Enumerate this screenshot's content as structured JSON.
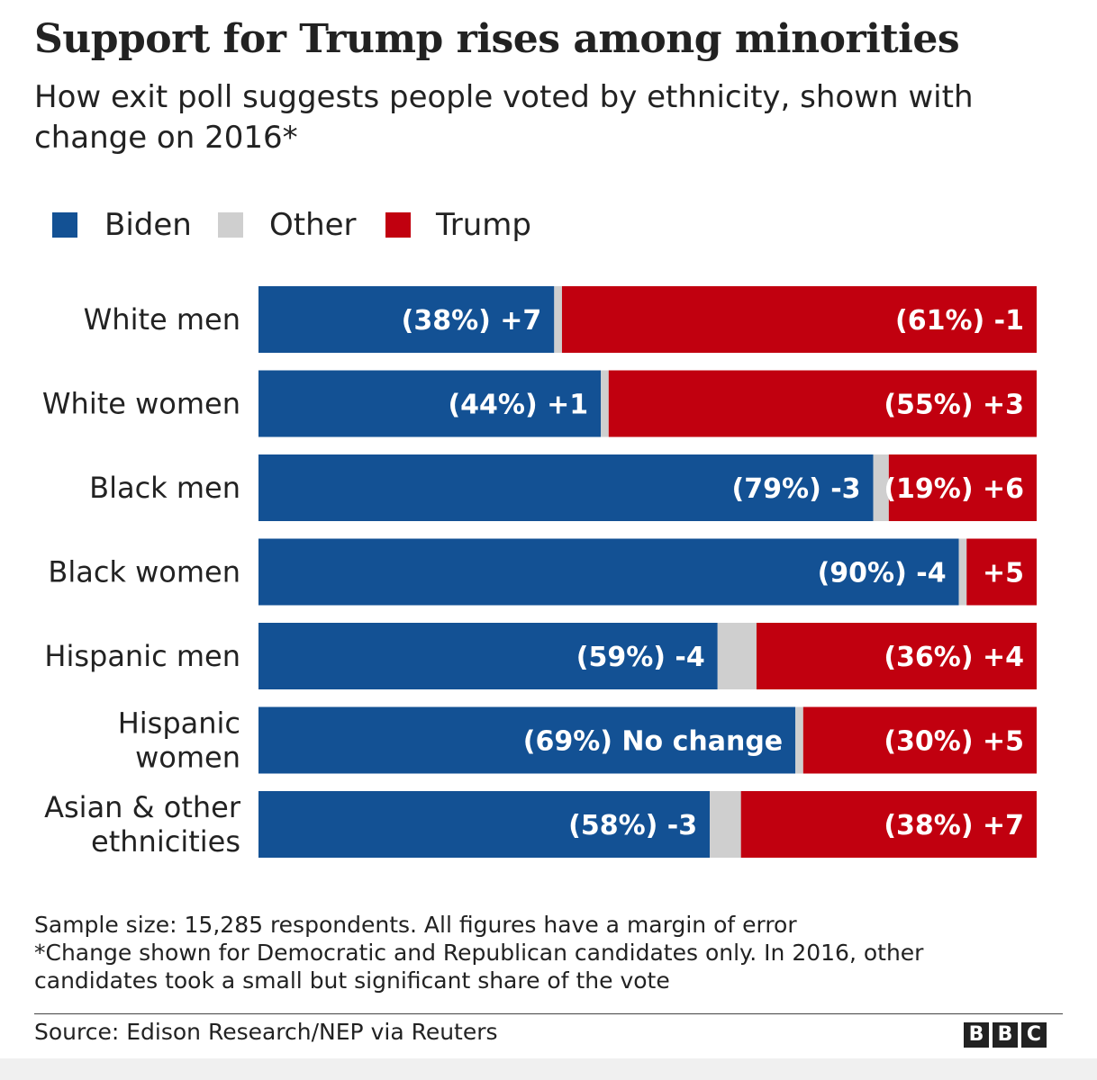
{
  "title": "Support for Trump rises among minorities",
  "subtitle": "How exit poll suggests people voted by ethnicity, shown with change on 2016*",
  "legend": [
    {
      "label": "Biden",
      "color": "#135194"
    },
    {
      "label": "Other",
      "color": "#cfcfcf"
    },
    {
      "label": "Trump",
      "color": "#c1000f"
    }
  ],
  "chart_data": {
    "type": "bar",
    "orientation": "horizontal",
    "stacked": true,
    "xlim": [
      0,
      100
    ],
    "categories": [
      [
        "White men"
      ],
      [
        "White women"
      ],
      [
        "Black men"
      ],
      [
        "Black women"
      ],
      [
        "Hispanic men"
      ],
      [
        "Hispanic",
        "women"
      ],
      [
        "Asian & other",
        "ethnicities"
      ]
    ],
    "series": [
      {
        "name": "Biden",
        "color": "#135194",
        "values": [
          38,
          44,
          79,
          90,
          59,
          69,
          58
        ],
        "labels": [
          "(38%) +7",
          "(44%) +1",
          "(79%) -3",
          "(90%) -4",
          "(59%) -4",
          "(69%) No change",
          "(58%) -3"
        ]
      },
      {
        "name": "Other",
        "color": "#cfcfcf",
        "values": [
          1,
          1,
          2,
          1,
          5,
          1,
          4
        ],
        "labels": [
          "",
          "",
          "",
          "",
          "",
          "",
          ""
        ]
      },
      {
        "name": "Trump",
        "color": "#c1000f",
        "values": [
          61,
          55,
          19,
          9,
          36,
          30,
          38
        ],
        "labels": [
          "(61%) -1",
          "(55%) +3",
          "(19%) +6",
          "+5",
          "(36%) +4",
          "(30%) +5",
          "(38%) +7"
        ]
      }
    ]
  },
  "footnote": [
    "Sample size: 15,285 respondents. All figures have a margin of error",
    "*Change shown for Democratic and Republican candidates only. In 2016, other",
    "candidates took a small but significant share of the vote"
  ],
  "source": "Source: Edison Research/NEP via Reuters",
  "brand": [
    "B",
    "B",
    "C"
  ]
}
